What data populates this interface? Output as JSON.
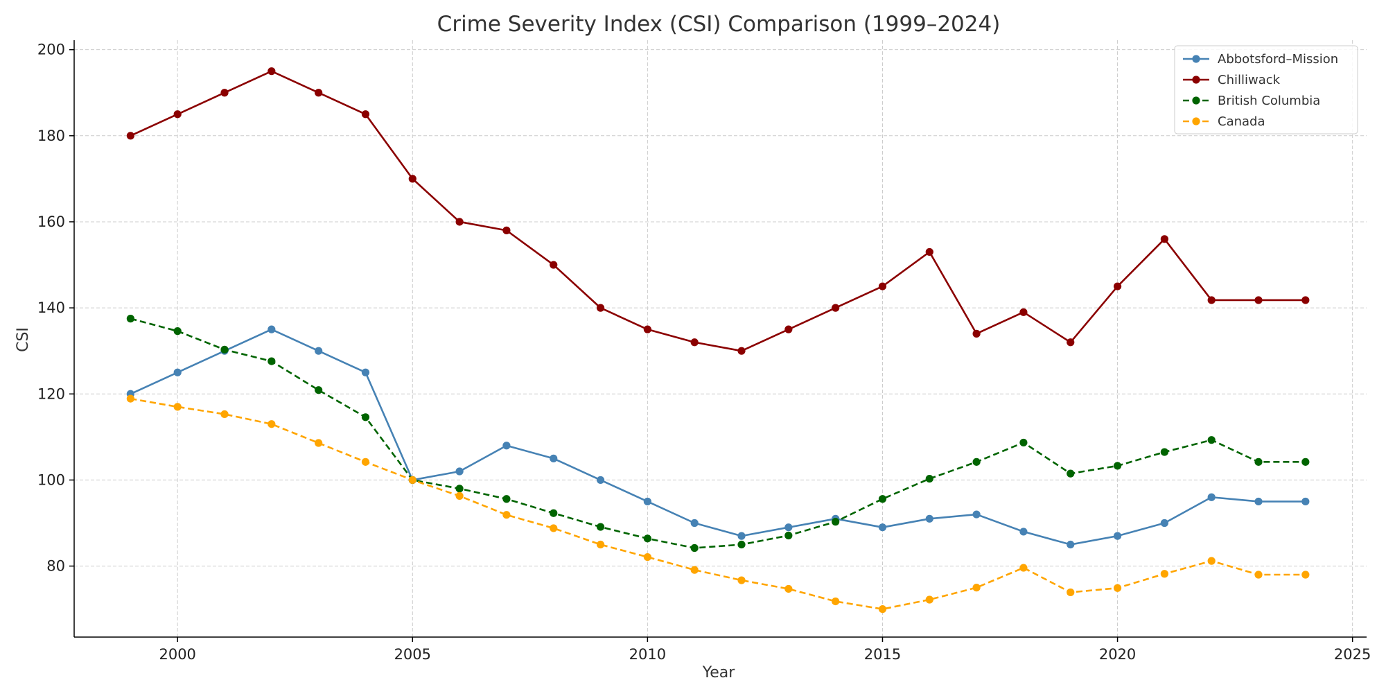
{
  "chart_data": {
    "type": "line",
    "title": "Crime Severity Index (CSI) Comparison (1999–2024)",
    "xlabel": "Year",
    "ylabel": "CSI",
    "xlim": [
      1997.8,
      2025.3
    ],
    "ylim": [
      63.5,
      202.2
    ],
    "x_ticks": [
      2000,
      2005,
      2010,
      2015,
      2020,
      2025
    ],
    "y_ticks": [
      80,
      100,
      120,
      140,
      160,
      180,
      200
    ],
    "grid": true,
    "legend_position": "top-right",
    "x": [
      1999,
      2000,
      2001,
      2002,
      2003,
      2004,
      2005,
      2006,
      2007,
      2008,
      2009,
      2010,
      2011,
      2012,
      2013,
      2014,
      2015,
      2016,
      2017,
      2018,
      2019,
      2020,
      2021,
      2022,
      2023,
      2024
    ],
    "series": [
      {
        "name": "Abbotsford–Mission",
        "color": "#4682b4",
        "dashed": false,
        "values": [
          120,
          125,
          130,
          135,
          130,
          125,
          100,
          102,
          108,
          105,
          100,
          95,
          90,
          87,
          89,
          91,
          89,
          91,
          92,
          88,
          85,
          87,
          90,
          96,
          95,
          95
        ]
      },
      {
        "name": "Chilliwack",
        "color": "#8b0000",
        "dashed": false,
        "values": [
          180,
          185,
          190,
          195,
          190,
          185,
          170,
          160,
          158,
          150,
          140,
          135,
          132,
          130,
          135,
          140,
          145,
          153,
          134,
          139,
          132,
          145,
          156,
          141.8,
          141.8,
          141.8
        ]
      },
      {
        "name": "British Columbia",
        "color": "#006400",
        "dashed": true,
        "values": [
          137.5,
          134.6,
          130.3,
          127.6,
          120.9,
          114.6,
          100,
          98,
          95.6,
          92.3,
          89.1,
          86.4,
          84.2,
          85,
          87.1,
          90.3,
          95.6,
          100.3,
          104.2,
          108.7,
          101.5,
          103.3,
          106.5,
          109.3,
          104.2,
          104.2
        ]
      },
      {
        "name": "Canada",
        "color": "#ffa500",
        "dashed": true,
        "values": [
          118.9,
          117,
          115.3,
          113,
          108.6,
          104.2,
          100,
          96.3,
          91.9,
          88.8,
          85,
          82.1,
          79.1,
          76.7,
          74.7,
          71.8,
          70,
          72.2,
          75,
          79.6,
          73.9,
          74.9,
          78.2,
          81.2,
          78,
          78
        ]
      }
    ]
  }
}
